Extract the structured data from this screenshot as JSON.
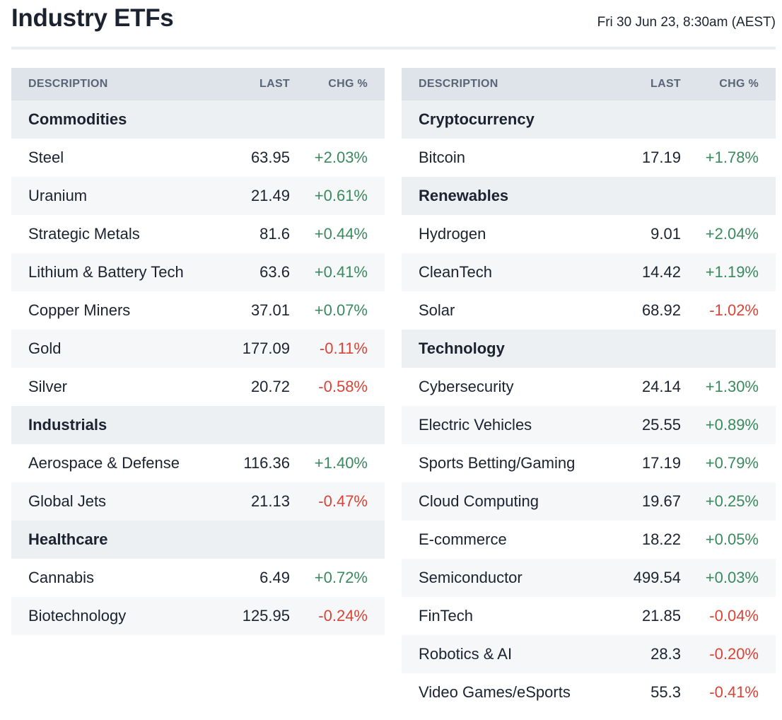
{
  "header": {
    "title": "Industry ETFs",
    "timestamp": "Fri 30 Jun 23, 8:30am (AEST)"
  },
  "colors": {
    "positive": "#3a8a5e",
    "negative": "#d84436",
    "header_bg": "#dfe4ea",
    "group_bg": "#edf0f3"
  },
  "columns": {
    "description": "DESCRIPTION",
    "last": "LAST",
    "chg": "CHG %"
  },
  "left_table": [
    {
      "type": "group",
      "label": "Commodities"
    },
    {
      "type": "item",
      "name": "Steel",
      "last": "63.95",
      "chg": "+2.03%"
    },
    {
      "type": "item",
      "name": "Uranium",
      "last": "21.49",
      "chg": "+0.61%"
    },
    {
      "type": "item",
      "name": "Strategic Metals",
      "last": "81.6",
      "chg": "+0.44%"
    },
    {
      "type": "item",
      "name": "Lithium & Battery Tech",
      "last": "63.6",
      "chg": "+0.41%"
    },
    {
      "type": "item",
      "name": "Copper Miners",
      "last": "37.01",
      "chg": "+0.07%"
    },
    {
      "type": "item",
      "name": "Gold",
      "last": "177.09",
      "chg": "-0.11%"
    },
    {
      "type": "item",
      "name": "Silver",
      "last": "20.72",
      "chg": "-0.58%"
    },
    {
      "type": "group",
      "label": "Industrials"
    },
    {
      "type": "item",
      "name": "Aerospace & Defense",
      "last": "116.36",
      "chg": "+1.40%"
    },
    {
      "type": "item",
      "name": "Global Jets",
      "last": "21.13",
      "chg": "-0.47%"
    },
    {
      "type": "group",
      "label": "Healthcare"
    },
    {
      "type": "item",
      "name": "Cannabis",
      "last": "6.49",
      "chg": "+0.72%"
    },
    {
      "type": "item",
      "name": "Biotechnology",
      "last": "125.95",
      "chg": "-0.24%"
    }
  ],
  "right_table": [
    {
      "type": "group",
      "label": "Cryptocurrency"
    },
    {
      "type": "item",
      "name": "Bitcoin",
      "last": "17.19",
      "chg": "+1.78%"
    },
    {
      "type": "group",
      "label": "Renewables"
    },
    {
      "type": "item",
      "name": "Hydrogen",
      "last": "9.01",
      "chg": "+2.04%"
    },
    {
      "type": "item",
      "name": "CleanTech",
      "last": "14.42",
      "chg": "+1.19%"
    },
    {
      "type": "item",
      "name": "Solar",
      "last": "68.92",
      "chg": "-1.02%"
    },
    {
      "type": "group",
      "label": "Technology"
    },
    {
      "type": "item",
      "name": "Cybersecurity",
      "last": "24.14",
      "chg": "+1.30%"
    },
    {
      "type": "item",
      "name": "Electric Vehicles",
      "last": "25.55",
      "chg": "+0.89%"
    },
    {
      "type": "item",
      "name": "Sports Betting/Gaming",
      "last": "17.19",
      "chg": "+0.79%"
    },
    {
      "type": "item",
      "name": "Cloud Computing",
      "last": "19.67",
      "chg": "+0.25%"
    },
    {
      "type": "item",
      "name": "E-commerce",
      "last": "18.22",
      "chg": "+0.05%"
    },
    {
      "type": "item",
      "name": "Semiconductor",
      "last": "499.54",
      "chg": "+0.03%"
    },
    {
      "type": "item",
      "name": "FinTech",
      "last": "21.85",
      "chg": "-0.04%"
    },
    {
      "type": "item",
      "name": "Robotics & AI",
      "last": "28.3",
      "chg": "-0.20%"
    },
    {
      "type": "item",
      "name": "Video Games/eSports",
      "last": "55.3",
      "chg": "-0.41%"
    }
  ]
}
